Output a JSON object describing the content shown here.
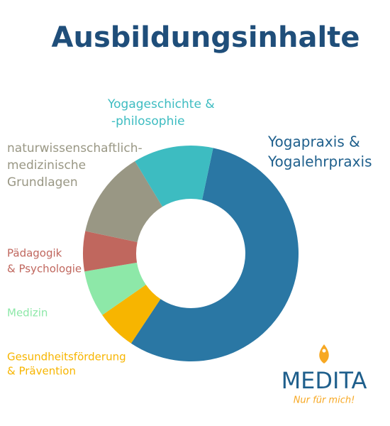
{
  "chart_data": {
    "type": "donut",
    "title": "Ausbildungsinhalte",
    "categories": [
      [
        "Yogapraxis &",
        "Yogalehrpraxis"
      ],
      [
        "Gesundheitsförderung",
        "& Prävention"
      ],
      [
        "Medizin"
      ],
      [
        "Pädagogik",
        "& Psychologie"
      ],
      [
        "naturwissenschaftlich-",
        "medizinische",
        "Grundlagen"
      ],
      [
        "Yogageschichte &",
        "-philosophie"
      ]
    ],
    "values": [
      56,
      6,
      7,
      6,
      13,
      12
    ],
    "colors": [
      "#2a77a4",
      "#f7b500",
      "#8de8a8",
      "#c0675e",
      "#999784",
      "#3dbcc1"
    ]
  },
  "logo": {
    "name": "MEDITA",
    "tagline": "Nur für mich!"
  }
}
